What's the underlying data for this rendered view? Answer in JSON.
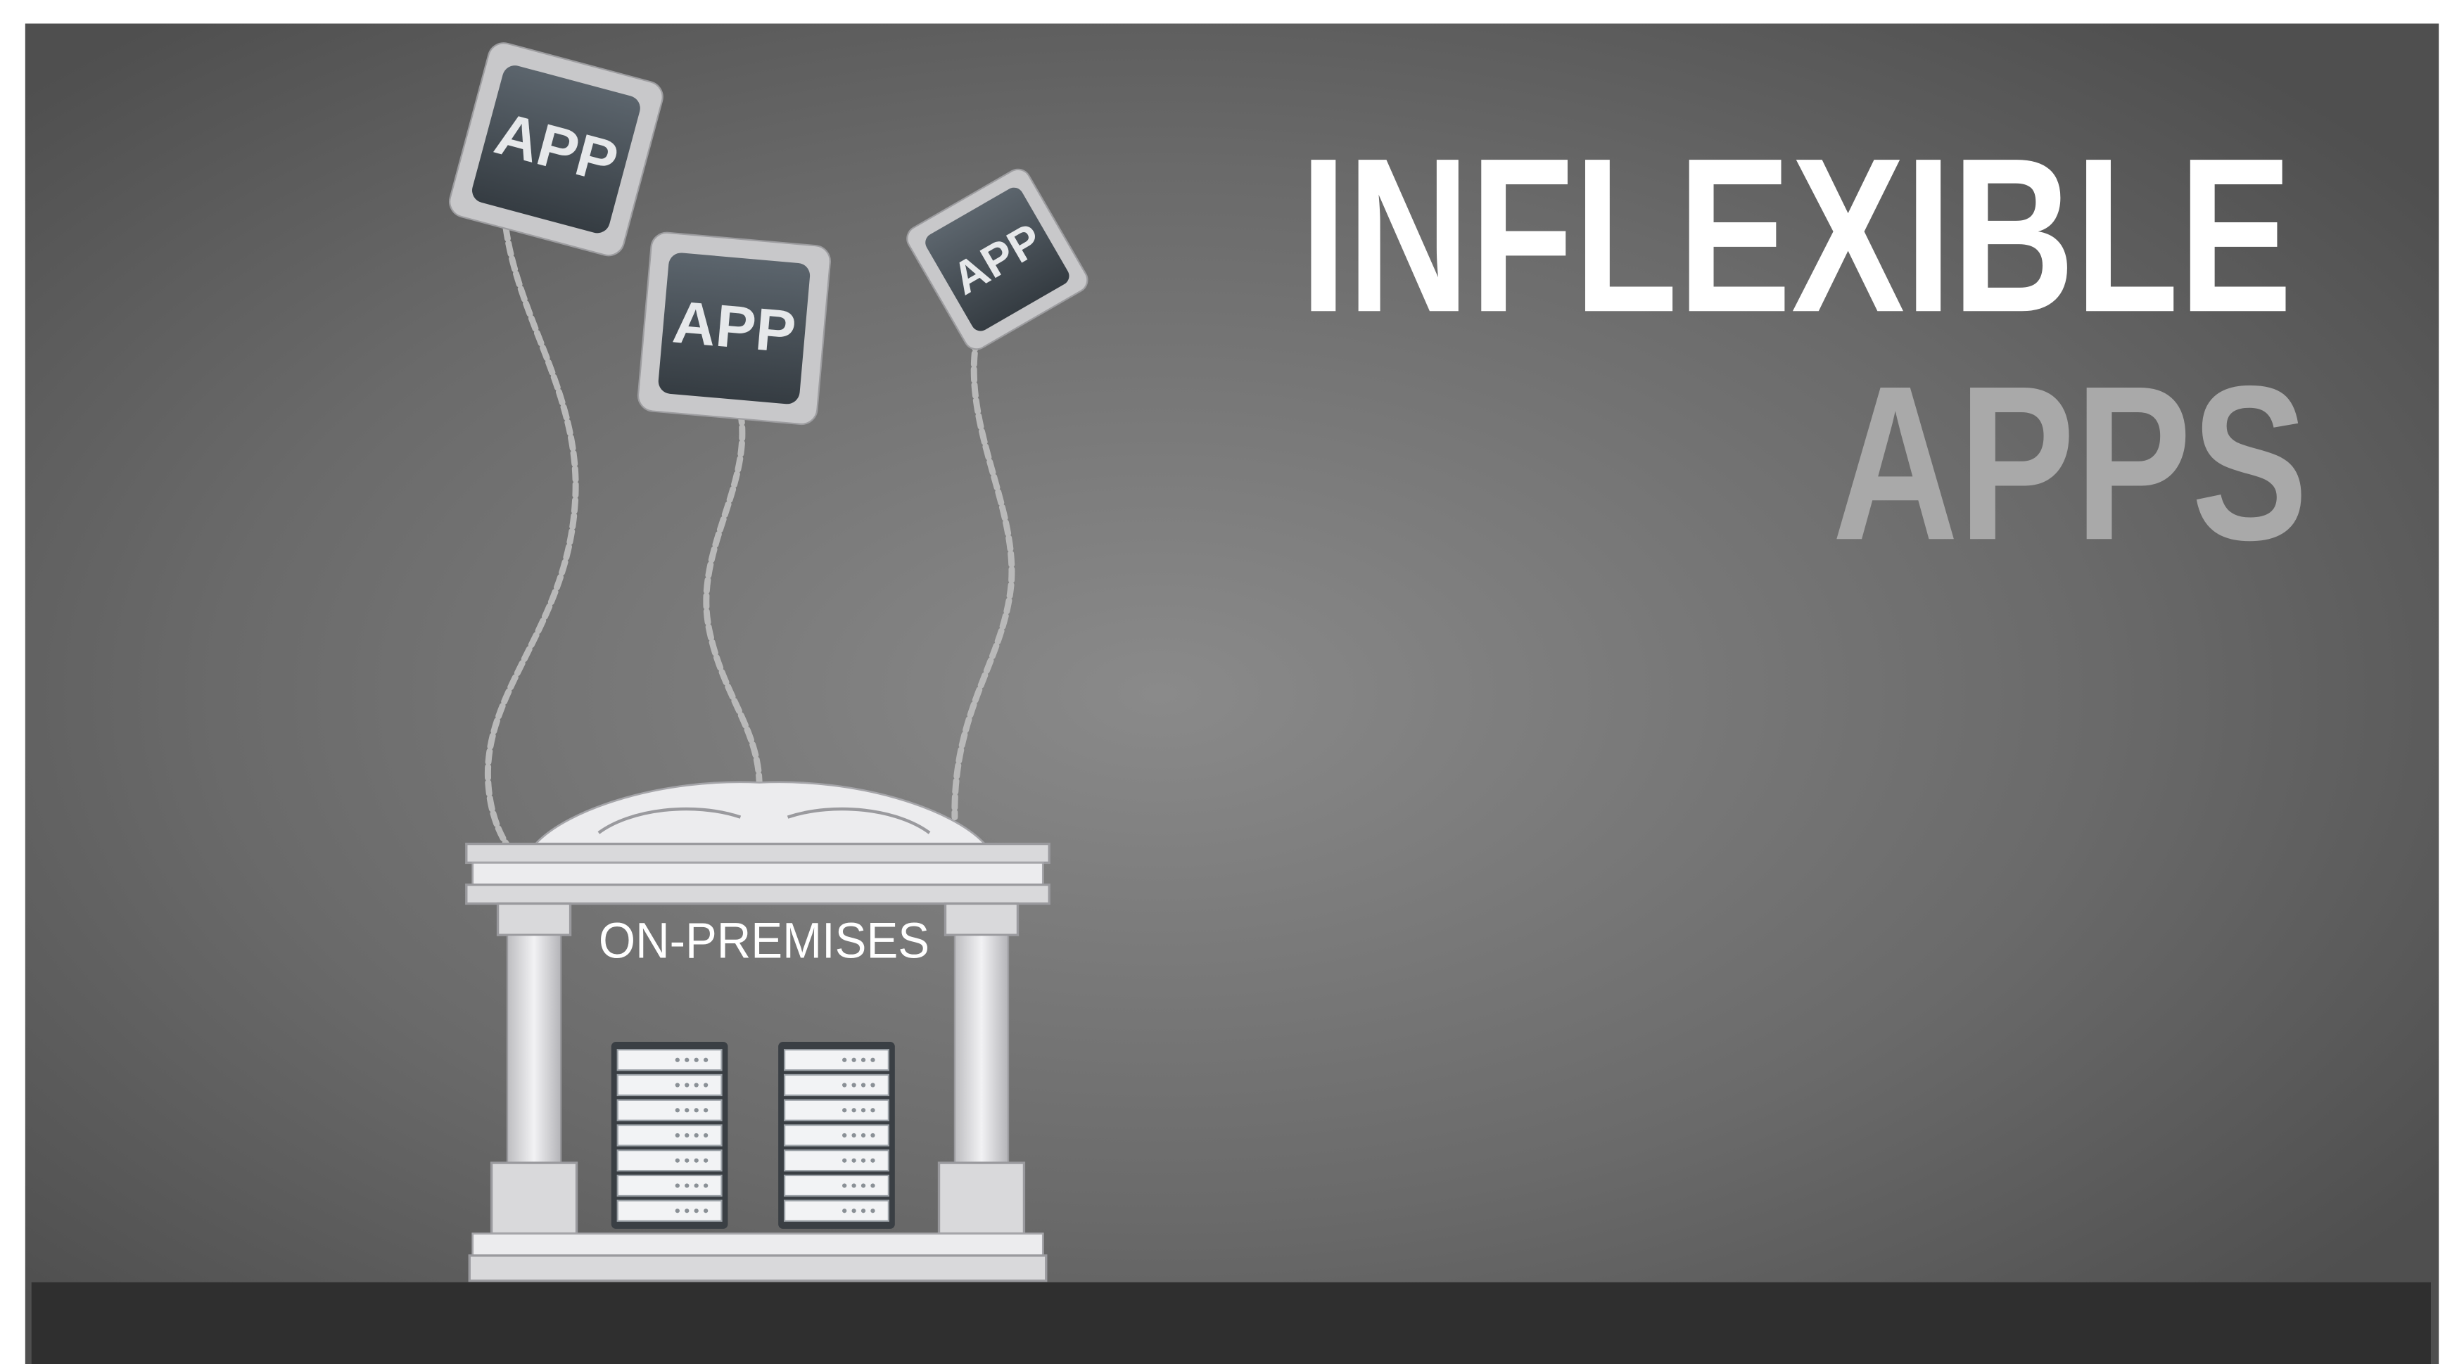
{
  "headline": {
    "line1": "INFLEXIBLE",
    "line2": "APPS"
  },
  "building": {
    "label": "ON-PREMISES"
  },
  "apps": [
    {
      "label": "APP"
    },
    {
      "label": "APP"
    },
    {
      "label": "APP"
    }
  ]
}
